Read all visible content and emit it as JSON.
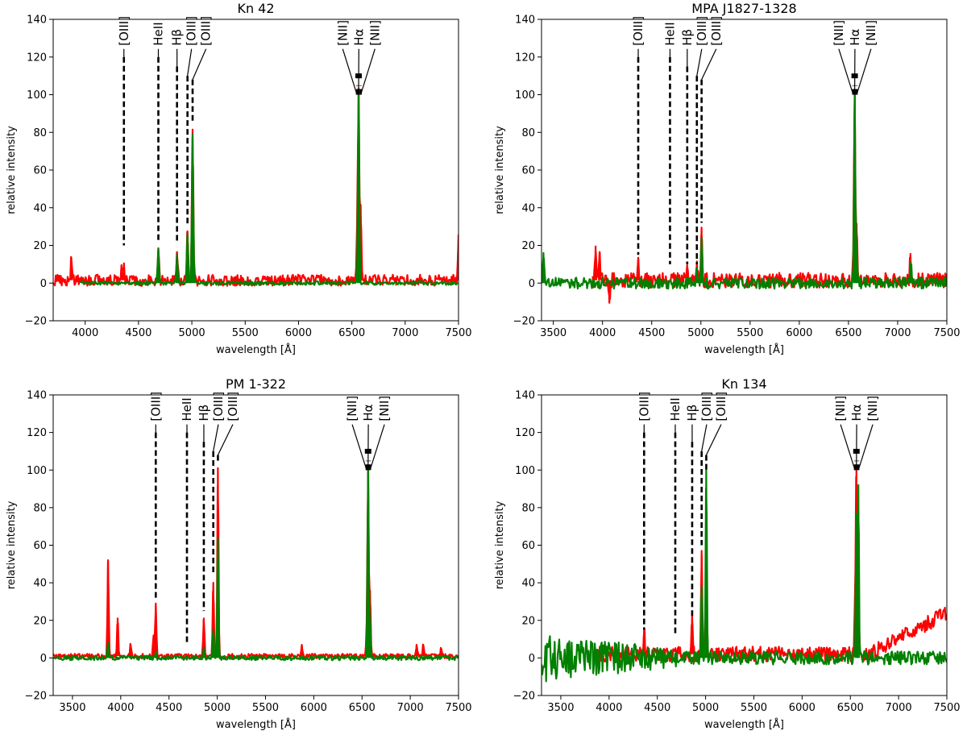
{
  "chart_data": [
    {
      "type": "line",
      "title": "Kn 42",
      "xlabel": "wavelength [Å]",
      "ylabel": "relative intensity",
      "xlim": [
        3700,
        7500
      ],
      "ylim": [
        -20,
        140
      ],
      "xticks": [
        4000,
        4500,
        5000,
        5500,
        6000,
        6500,
        7000,
        7500
      ],
      "yticks": [
        -20,
        0,
        20,
        40,
        60,
        80,
        100,
        120,
        140
      ],
      "series": [
        {
          "name": "red",
          "color": "#ff0000",
          "x_start": 3700,
          "x_end": 7500,
          "noise": 3.0,
          "continuum": 1.5,
          "lines": [
            [
              3870,
              12
            ],
            [
              4340,
              8
            ],
            [
              4363,
              9
            ],
            [
              4686,
              17
            ],
            [
              4861,
              15
            ],
            [
              4959,
              26
            ],
            [
              5007,
              80
            ],
            [
              6548,
              20
            ],
            [
              6563,
              100
            ],
            [
              6583,
              40
            ],
            [
              7500,
              24
            ]
          ]
        },
        {
          "name": "green",
          "color": "#008000",
          "x_start": 3950,
          "x_end": 7500,
          "noise": 1.0,
          "continuum": 0,
          "lines": [
            [
              4686,
              18
            ],
            [
              4861,
              15
            ],
            [
              4959,
              26
            ],
            [
              5007,
              79
            ],
            [
              6563,
              100
            ]
          ]
        }
      ],
      "annotations": {
        "labels": [
          "[OIII]",
          "HeII",
          "Hβ",
          "[OIII]",
          "[OIII]",
          "[NII]",
          "Hα",
          "[NII]"
        ],
        "wavelengths": [
          4363,
          4686,
          4861,
          4959,
          5007,
          6548,
          6563,
          6583
        ],
        "line_tops": [
          120,
          120,
          115,
          110,
          108,
          100,
          100,
          100
        ],
        "line_bottoms": [
          20,
          22,
          22,
          30,
          85,
          105,
          105,
          105
        ]
      }
    },
    {
      "type": "line",
      "title": "MPA J1827-1328",
      "xlabel": "wavelength [Å]",
      "ylabel": "relative intensity",
      "xlim": [
        3380,
        7500
      ],
      "ylim": [
        -20,
        140
      ],
      "xticks": [
        3500,
        4000,
        4500,
        5000,
        5500,
        6000,
        6500,
        7000,
        7500
      ],
      "yticks": [
        -20,
        0,
        20,
        40,
        60,
        80,
        100,
        120,
        140
      ],
      "series": [
        {
          "name": "red",
          "color": "#ff0000",
          "x_start": 3900,
          "x_end": 7500,
          "noise": 4.0,
          "continuum": 1.5,
          "lines": [
            [
              3930,
              18
            ],
            [
              3970,
              15
            ],
            [
              4070,
              -12
            ],
            [
              4363,
              12
            ],
            [
              4860,
              8
            ],
            [
              4959,
              10
            ],
            [
              5007,
              28
            ],
            [
              6548,
              12
            ],
            [
              6563,
              100
            ],
            [
              6583,
              30
            ],
            [
              7130,
              14
            ]
          ]
        },
        {
          "name": "green",
          "color": "#008000",
          "x_start": 3380,
          "x_end": 7500,
          "noise": 3.0,
          "continuum": 0,
          "lines": [
            [
              3400,
              16
            ],
            [
              4959,
              8
            ],
            [
              5007,
              24
            ],
            [
              6563,
              100
            ],
            [
              6583,
              20
            ],
            [
              7135,
              10
            ]
          ]
        }
      ],
      "annotations": {
        "labels": [
          "[OIII]",
          "HeII",
          "Hβ",
          "[OIII]",
          "[OIII]",
          "[NII]",
          "Hα",
          "[NII]"
        ],
        "wavelengths": [
          4363,
          4686,
          4861,
          4959,
          5007,
          6548,
          6563,
          6583
        ],
        "line_tops": [
          120,
          120,
          115,
          110,
          108,
          100,
          100,
          100
        ],
        "line_bottoms": [
          15,
          10,
          10,
          10,
          32,
          105,
          105,
          105
        ]
      }
    },
    {
      "type": "line",
      "title": "PM 1-322",
      "xlabel": "wavelength [Å]",
      "ylabel": "relative intensity",
      "xlim": [
        3300,
        7500
      ],
      "ylim": [
        -20,
        140
      ],
      "xticks": [
        3500,
        4000,
        4500,
        5000,
        5500,
        6000,
        6500,
        7000,
        7500
      ],
      "yticks": [
        -20,
        0,
        20,
        40,
        60,
        80,
        100,
        120,
        140
      ],
      "series": [
        {
          "name": "red",
          "color": "#ff0000",
          "x_start": 3300,
          "x_end": 7500,
          "noise": 1.2,
          "continuum": 1.0,
          "lines": [
            [
              3869,
              51
            ],
            [
              3968,
              20
            ],
            [
              4102,
              6
            ],
            [
              4340,
              11
            ],
            [
              4363,
              28
            ],
            [
              4861,
              20
            ],
            [
              4959,
              39
            ],
            [
              5007,
              100
            ],
            [
              5876,
              6
            ],
            [
              6548,
              12
            ],
            [
              6563,
              100
            ],
            [
              6583,
              35
            ],
            [
              7065,
              6
            ],
            [
              7135,
              6
            ],
            [
              7320,
              4
            ]
          ]
        },
        {
          "name": "green",
          "color": "#008000",
          "x_start": 3300,
          "x_end": 7500,
          "noise": 1.2,
          "continuum": 0,
          "lines": [
            [
              3869,
              8
            ],
            [
              4363,
              3
            ],
            [
              4861,
              5
            ],
            [
              4959,
              15
            ],
            [
              5007,
              64
            ],
            [
              6563,
              100
            ],
            [
              6583,
              20
            ]
          ]
        }
      ],
      "annotations": {
        "labels": [
          "[OIII]",
          "HeII",
          "Hβ",
          "[OIII]",
          "[OIII]",
          "[NII]",
          "Hα",
          "[NII]"
        ],
        "wavelengths": [
          4363,
          4686,
          4861,
          4959,
          5007,
          6548,
          6563,
          6583
        ],
        "line_tops": [
          120,
          120,
          115,
          110,
          108,
          100,
          100,
          100
        ],
        "line_bottoms": [
          32,
          8,
          25,
          45,
          105,
          105,
          105,
          105
        ]
      }
    },
    {
      "type": "line",
      "title": "Kn 134",
      "xlabel": "wavelength [Å]",
      "ylabel": "relative intensity",
      "xlim": [
        3300,
        7500
      ],
      "ylim": [
        -20,
        140
      ],
      "xticks": [
        3500,
        4000,
        4500,
        5000,
        5500,
        6000,
        6500,
        7000,
        7500
      ],
      "yticks": [
        -20,
        0,
        20,
        40,
        60,
        80,
        100,
        120,
        140
      ],
      "series": [
        {
          "name": "red",
          "color": "#ff0000",
          "x_start": 3880,
          "x_end": 7500,
          "noise": 4.0,
          "continuum": 2.0,
          "ramp_from": 6700,
          "ramp_to": 22,
          "lines": [
            [
              4363,
              14
            ],
            [
              4861,
              22
            ],
            [
              4959,
              55
            ],
            [
              5007,
              52
            ],
            [
              6548,
              22
            ],
            [
              6563,
              100
            ],
            [
              6583,
              45
            ]
          ]
        },
        {
          "name": "green",
          "color": "#008000",
          "x_start": 3300,
          "x_end": 7500,
          "noise": 6.0,
          "noise_decay": true,
          "continuum": 0,
          "lines": [
            [
              4959,
              38
            ],
            [
              5007,
              100
            ],
            [
              6563,
              75
            ],
            [
              6583,
              92
            ]
          ]
        }
      ],
      "annotations": {
        "labels": [
          "[OIII]",
          "HeII",
          "Hβ",
          "[OIII]",
          "[OIII]",
          "[NII]",
          "Hα",
          "[NII]"
        ],
        "wavelengths": [
          4363,
          4686,
          4861,
          4959,
          5007,
          6548,
          6563,
          6583
        ],
        "line_tops": [
          120,
          120,
          115,
          110,
          108,
          100,
          100,
          100
        ],
        "line_bottoms": [
          15,
          12,
          22,
          60,
          100,
          105,
          105,
          105
        ]
      }
    }
  ]
}
